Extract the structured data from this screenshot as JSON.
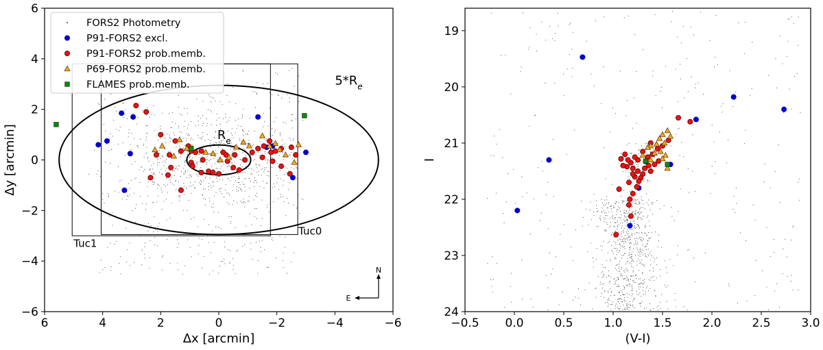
{
  "chart_data": [
    {
      "type": "scatter",
      "name": "spatial-map",
      "xlabel": "Δx [arcmin]",
      "ylabel": "Δy [arcmin]",
      "xlim": [
        6,
        -6
      ],
      "ylim": [
        -6,
        6
      ],
      "xticks": [
        6,
        4,
        2,
        0,
        -2,
        -4,
        -6
      ],
      "xtick_labels": [
        "6",
        "4",
        "2",
        "0",
        "−2",
        "−4",
        "−6"
      ],
      "yticks": [
        -6,
        -4,
        -2,
        0,
        2,
        4,
        6
      ],
      "ytick_labels": [
        "−6",
        "−4",
        "−2",
        "0",
        "2",
        "4",
        "6"
      ],
      "legend": {
        "position": "top-left",
        "entries": [
          {
            "label": "FORS2 Photometry",
            "marker": "dot",
            "color": "#000000"
          },
          {
            "label": "P91-FORS2 excl.",
            "marker": "circle",
            "color": "#0000cc"
          },
          {
            "label": "P91-FORS2 prob.memb.",
            "marker": "circle",
            "color": "#ee1111"
          },
          {
            "label": "P69-FORS2 prob.memb.",
            "marker": "triangle",
            "color": "#f5a623"
          },
          {
            "label": "FLAMES prob.memb.",
            "marker": "square",
            "color": "#118811"
          }
        ]
      },
      "fields": [
        {
          "label": "Tuc1",
          "x0": 5.05,
          "x1": -1.78,
          "y0": -3.0,
          "y1": 3.8
        },
        {
          "label": "Tuc0",
          "x0": 4.05,
          "x1": -2.72,
          "y0": -2.95,
          "y1": 3.8
        }
      ],
      "ellipses": [
        {
          "label": "5*Re",
          "cx": 0.0,
          "cy": 0.0,
          "rx": 5.5,
          "ry": 2.95
        },
        {
          "label": "Re",
          "cx": 0.0,
          "cy": 0.0,
          "rx": 1.1,
          "ry": 0.59
        }
      ],
      "label_re": "R",
      "label_re_sub": "e",
      "label_5re": "5*R",
      "label_5re_sub": "e",
      "compass": {
        "north": "N",
        "east": "E"
      },
      "photometry_count": 1100,
      "series": [
        {
          "name": "P91-FORS2 excl.",
          "points": [
            [
              3.35,
              1.85
            ],
            [
              2.95,
              1.7
            ],
            [
              -1.35,
              1.7
            ],
            [
              -1.85,
              0.55
            ],
            [
              -1.65,
              0.5
            ],
            [
              4.15,
              0.6
            ],
            [
              3.85,
              0.75
            ],
            [
              3.05,
              0.25
            ],
            [
              -3.0,
              0.3
            ],
            [
              -2.55,
              -0.7
            ],
            [
              3.25,
              -1.2
            ]
          ]
        },
        {
          "name": "P91-FORS2 prob.memb.",
          "points": [
            [
              2.85,
              2.15
            ],
            [
              2.5,
              1.9
            ],
            [
              2.0,
              1.0
            ],
            [
              1.5,
              0.75
            ],
            [
              1.3,
              0.35
            ],
            [
              1.7,
              0.2
            ],
            [
              2.15,
              0.2
            ],
            [
              2.35,
              -0.7
            ],
            [
              1.75,
              -0.6
            ],
            [
              1.65,
              -0.3
            ],
            [
              1.3,
              -1.2
            ],
            [
              1.05,
              0.55
            ],
            [
              0.95,
              0.35
            ],
            [
              0.8,
              0.3
            ],
            [
              0.6,
              0.35
            ],
            [
              0.55,
              0.0
            ],
            [
              0.95,
              -0.1
            ],
            [
              0.9,
              -0.25
            ],
            [
              0.6,
              -0.5
            ],
            [
              0.35,
              -0.45
            ],
            [
              0.2,
              -0.5
            ],
            [
              0.0,
              -0.55
            ],
            [
              -0.15,
              0.3
            ],
            [
              -0.25,
              0.2
            ],
            [
              -0.5,
              -0.3
            ],
            [
              -0.7,
              -0.4
            ],
            [
              -0.9,
              0.0
            ],
            [
              -1.15,
              0.3
            ],
            [
              -1.35,
              0.45
            ],
            [
              -1.55,
              0.55
            ],
            [
              -1.75,
              0.75
            ],
            [
              -1.8,
              0.3
            ],
            [
              -1.95,
              0.35
            ],
            [
              -2.15,
              0.45
            ],
            [
              -2.5,
              0.5
            ],
            [
              -2.65,
              0.2
            ],
            [
              -2.15,
              -0.25
            ],
            [
              -2.45,
              -0.55
            ],
            [
              -1.5,
              0.1
            ],
            [
              -1.85,
              -0.05
            ],
            [
              -0.55,
              0.2
            ],
            [
              -0.3,
              -0.05
            ]
          ]
        },
        {
          "name": "P69-FORS2 prob.memb.",
          "points": [
            [
              2.2,
              0.4
            ],
            [
              1.95,
              0.55
            ],
            [
              1.55,
              0.15
            ],
            [
              1.35,
              0.8
            ],
            [
              1.1,
              0.45
            ],
            [
              0.45,
              0.3
            ],
            [
              0.2,
              0.25
            ],
            [
              -0.05,
              0.0
            ],
            [
              -0.35,
              0.1
            ],
            [
              -0.6,
              0.5
            ],
            [
              -0.85,
              0.7
            ],
            [
              -1.05,
              0.55
            ],
            [
              -1.5,
              0.95
            ],
            [
              -1.75,
              0.55
            ],
            [
              -1.95,
              0.65
            ],
            [
              -2.1,
              0.4
            ],
            [
              -2.3,
              0.2
            ],
            [
              -2.6,
              -0.1
            ],
            [
              -2.75,
              0.6
            ]
          ]
        },
        {
          "name": "FLAMES prob.memb.",
          "points": [
            [
              5.6,
              1.4
            ],
            [
              0.95,
              0.45
            ],
            [
              -2.95,
              1.75
            ]
          ]
        }
      ]
    },
    {
      "type": "scatter",
      "name": "color-magnitude-diagram",
      "xlabel": "(V-I)",
      "ylabel": "I",
      "xlim": [
        -0.5,
        3.0
      ],
      "ylim": [
        24,
        18.6
      ],
      "xticks": [
        -0.5,
        0.0,
        0.5,
        1.0,
        1.5,
        2.0,
        2.5,
        3.0
      ],
      "xtick_labels": [
        "−0.5",
        "0.0",
        "0.5",
        "1.0",
        "1.5",
        "2.0",
        "2.5",
        "3.0"
      ],
      "yticks": [
        19,
        20,
        21,
        22,
        23,
        24
      ],
      "ytick_labels": [
        "19",
        "20",
        "21",
        "22",
        "23",
        "24"
      ],
      "photometry_count": 1100,
      "series": [
        {
          "name": "P91-FORS2 excl.",
          "points": [
            [
              0.69,
              19.47
            ],
            [
              2.22,
              20.18
            ],
            [
              2.73,
              20.4
            ],
            [
              1.84,
              20.58
            ],
            [
              0.35,
              21.3
            ],
            [
              1.58,
              21.38
            ],
            [
              1.26,
              21.8
            ],
            [
              1.17,
              22.47
            ],
            [
              0.03,
              22.2
            ]
          ]
        },
        {
          "name": "P91-FORS2 prob.memb.",
          "points": [
            [
              1.66,
              20.55
            ],
            [
              1.78,
              20.62
            ],
            [
              1.56,
              20.95
            ],
            [
              1.5,
              21.05
            ],
            [
              1.45,
              21.1
            ],
            [
              1.4,
              21.2
            ],
            [
              1.38,
              21.0
            ],
            [
              1.35,
              21.25
            ],
            [
              1.3,
              21.15
            ],
            [
              1.25,
              21.3
            ],
            [
              1.22,
              21.25
            ],
            [
              1.18,
              21.35
            ],
            [
              1.15,
              21.3
            ],
            [
              1.12,
              21.2
            ],
            [
              1.14,
              21.42
            ],
            [
              1.2,
              21.45
            ],
            [
              1.25,
              21.5
            ],
            [
              1.3,
              21.55
            ],
            [
              1.28,
              21.62
            ],
            [
              1.22,
              21.6
            ],
            [
              1.32,
              21.45
            ],
            [
              1.36,
              21.4
            ],
            [
              1.33,
              21.33
            ],
            [
              1.42,
              21.38
            ],
            [
              1.46,
              21.32
            ],
            [
              1.38,
              21.5
            ],
            [
              1.2,
              21.55
            ],
            [
              1.26,
              21.68
            ],
            [
              1.16,
              21.7
            ],
            [
              1.24,
              21.78
            ],
            [
              1.2,
              21.9
            ],
            [
              1.17,
              22.0
            ],
            [
              1.16,
              22.1
            ],
            [
              1.18,
              22.3
            ],
            [
              1.06,
              21.82
            ],
            [
              1.03,
              22.63
            ],
            [
              1.08,
              21.28
            ],
            [
              1.1,
              21.4
            ]
          ]
        },
        {
          "name": "P69-FORS2 prob.memb.",
          "points": [
            [
              1.55,
              20.78
            ],
            [
              1.5,
              20.85
            ],
            [
              1.58,
              20.88
            ],
            [
              1.47,
              20.92
            ],
            [
              1.52,
              21.0
            ],
            [
              1.44,
              21.02
            ],
            [
              1.38,
              21.05
            ],
            [
              1.35,
              21.08
            ],
            [
              1.48,
              21.15
            ],
            [
              1.42,
              21.18
            ],
            [
              1.3,
              21.22
            ],
            [
              1.53,
              21.22
            ],
            [
              1.38,
              21.3
            ],
            [
              1.55,
              21.45
            ],
            [
              1.5,
              21.28
            ]
          ]
        },
        {
          "name": "FLAMES prob.memb.",
          "points": [
            [
              1.55,
              21.38
            ],
            [
              1.33,
              21.32
            ]
          ]
        }
      ]
    }
  ]
}
